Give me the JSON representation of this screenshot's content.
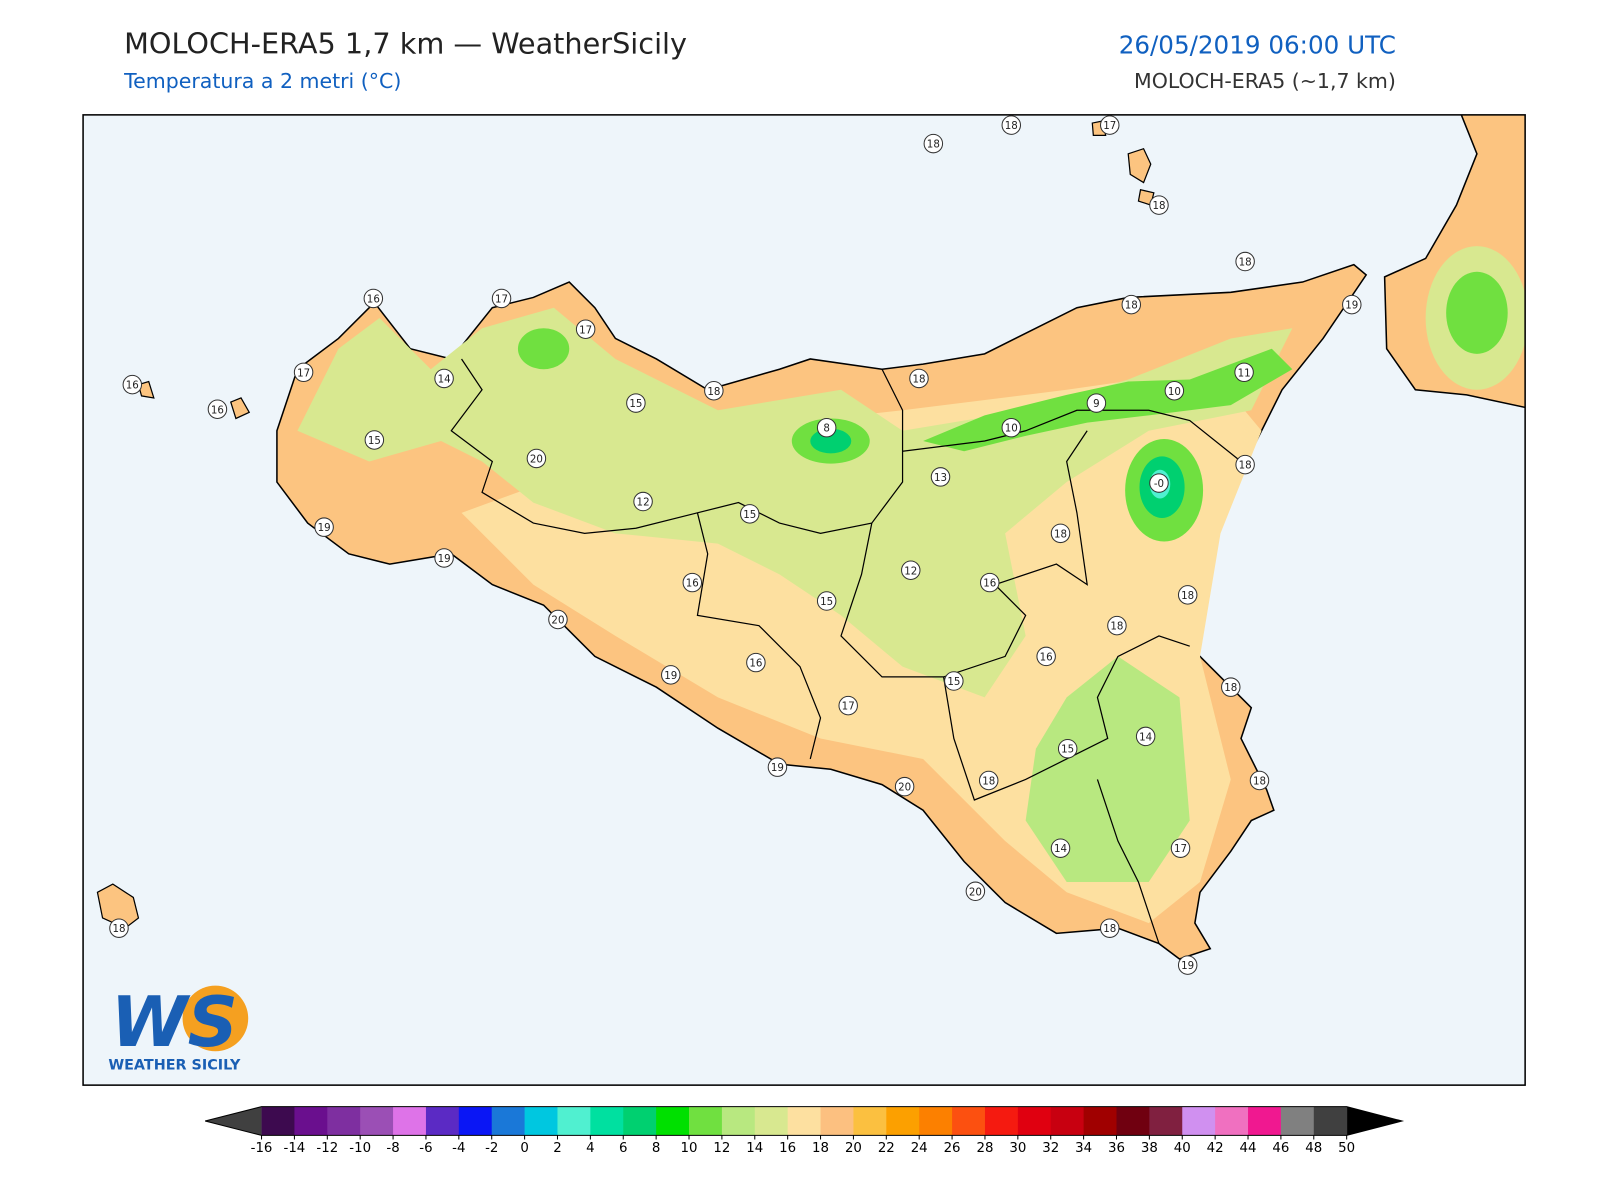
{
  "header": {
    "title": "MOLOCH-ERA5 1,7 km — WeatherSicily",
    "subtitle": "Temperatura a 2 metri (°C)",
    "date": "26/05/2019 06:00 UTC",
    "model": "MOLOCH-ERA5 (~1,7 km)"
  },
  "stations": [
    {
      "label": "18"
    },
    {
      "label": "18"
    },
    {
      "label": "17"
    },
    {
      "label": "18"
    },
    {
      "label": "18"
    },
    {
      "label": "19"
    },
    {
      "label": "18"
    },
    {
      "label": "16"
    },
    {
      "label": "17"
    },
    {
      "label": "17"
    },
    {
      "label": "17"
    },
    {
      "label": "14"
    },
    {
      "label": "16"
    },
    {
      "label": "16"
    },
    {
      "label": "18"
    },
    {
      "label": "18"
    },
    {
      "label": "15"
    },
    {
      "label": "8"
    },
    {
      "label": "9"
    },
    {
      "label": "10"
    },
    {
      "label": "11"
    },
    {
      "label": "10"
    },
    {
      "label": "15"
    },
    {
      "label": "20"
    },
    {
      "label": "13"
    },
    {
      "label": "-0"
    },
    {
      "label": "18"
    },
    {
      "label": "12"
    },
    {
      "label": "15"
    },
    {
      "label": "19"
    },
    {
      "label": "19"
    },
    {
      "label": "18"
    },
    {
      "label": "12"
    },
    {
      "label": "16"
    },
    {
      "label": "16"
    },
    {
      "label": "15"
    },
    {
      "label": "18"
    },
    {
      "label": "20"
    },
    {
      "label": "18"
    },
    {
      "label": "16"
    },
    {
      "label": "16"
    },
    {
      "label": "19"
    },
    {
      "label": "15"
    },
    {
      "label": "18"
    },
    {
      "label": "17"
    },
    {
      "label": "14"
    },
    {
      "label": "15"
    },
    {
      "label": "19"
    },
    {
      "label": "20"
    },
    {
      "label": "18"
    },
    {
      "label": "18"
    },
    {
      "label": "14"
    },
    {
      "label": "17"
    },
    {
      "label": "20"
    },
    {
      "label": "18"
    },
    {
      "label": "18"
    },
    {
      "label": "19"
    }
  ],
  "colorbar": {
    "ticks": [
      -16,
      -14,
      -12,
      -10,
      -8,
      -6,
      -4,
      -2,
      0,
      2,
      4,
      6,
      8,
      10,
      12,
      14,
      16,
      18,
      20,
      22,
      24,
      26,
      28,
      30,
      32,
      34,
      36,
      38,
      40,
      42,
      44,
      46,
      48,
      50
    ],
    "colors": [
      "#3d0a4f",
      "#6a0f8e",
      "#7e2fa0",
      "#9b4fb5",
      "#de73e8",
      "#5b2ac4",
      "#0a16f5",
      "#1a78d8",
      "#00c7e0",
      "#50f0d0",
      "#00e0a0",
      "#00d070",
      "#00e000",
      "#70e040",
      "#b8e880",
      "#d8e890",
      "#fde0a0",
      "#fcc080",
      "#fbc040",
      "#fca000",
      "#fc8000",
      "#fc5010",
      "#f51a10",
      "#e00010",
      "#c80010",
      "#a00000",
      "#700010",
      "#802040",
      "#d090f0",
      "#f070c0",
      "#f01890",
      "#808080",
      "#404040"
    ],
    "under_color": "#404040",
    "over_color": "#000000"
  },
  "logo": {
    "mark": "WS",
    "name": "WEATHER SICILY"
  }
}
